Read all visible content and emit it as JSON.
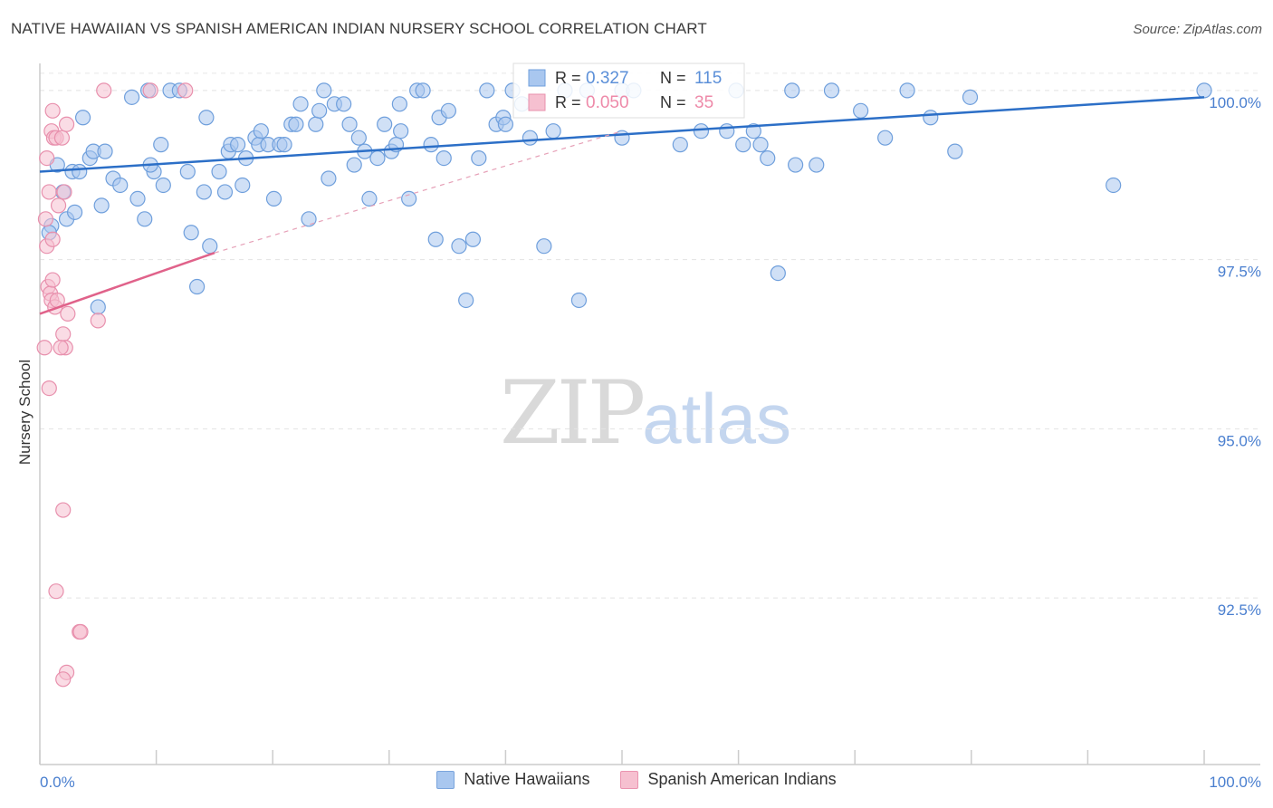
{
  "title": "NATIVE HAWAIIAN VS SPANISH AMERICAN INDIAN NURSERY SCHOOL CORRELATION CHART",
  "source": "Source: ZipAtlas.com",
  "watermark": {
    "zip": "ZIP",
    "atlas": "atlas"
  },
  "legend_box": {
    "rows": [
      {
        "r_label": "R =",
        "r_value": "0.327",
        "n_label": "N =",
        "n_value": "115",
        "color": "#5b8fd8"
      },
      {
        "r_label": "R =",
        "r_value": "0.050",
        "n_label": "N =",
        "n_value": "35",
        "color": "#ee8aa9"
      }
    ]
  },
  "legend": [
    {
      "label": "Native Hawaiians",
      "color": "#a9c7ef"
    },
    {
      "label": "Spanish American Indians",
      "color": "#f6c0d0"
    }
  ],
  "chart_data": {
    "type": "scatter",
    "title": "NATIVE HAWAIIAN VS SPANISH AMERICAN INDIAN NURSERY SCHOOL CORRELATION CHART",
    "xlabel": "",
    "ylabel": "Nursery School",
    "xlim": [
      0,
      100
    ],
    "ylim": [
      90.2,
      100.4
    ],
    "x_tick_labels": [
      "0.0%",
      "100.0%"
    ],
    "y_ticks": [
      92.5,
      95.0,
      97.5,
      100.0
    ],
    "y_tick_labels": [
      "92.5%",
      "95.0%",
      "97.5%",
      "100.0%"
    ],
    "grid": true,
    "series": [
      {
        "name": "Native Hawaiians",
        "color": "#a9c7ef",
        "stroke": "#6f9fdc",
        "trend": {
          "x": [
            0,
            100
          ],
          "y": [
            98.8,
            99.9
          ],
          "color": "#2c6fc7"
        },
        "points": [
          [
            1.5,
            98.9
          ],
          [
            2,
            98.5
          ],
          [
            2.3,
            98.1
          ],
          [
            2.8,
            98.8
          ],
          [
            3.4,
            98.8
          ],
          [
            5.3,
            98.3
          ],
          [
            3.7,
            99.6
          ],
          [
            4.3,
            99.0
          ],
          [
            4.6,
            99.1
          ],
          [
            5.6,
            99.1
          ],
          [
            6.3,
            98.7
          ],
          [
            6.9,
            98.6
          ],
          [
            7.9,
            99.9
          ],
          [
            8.4,
            98.4
          ],
          [
            9.0,
            98.1
          ],
          [
            9.3,
            100.0
          ],
          [
            9.8,
            98.8
          ],
          [
            10.4,
            99.2
          ],
          [
            10.6,
            98.6
          ],
          [
            11.2,
            100.0
          ],
          [
            12.0,
            100.0
          ],
          [
            12.7,
            98.8
          ],
          [
            13.0,
            97.9
          ],
          [
            14.1,
            98.5
          ],
          [
            14.3,
            99.6
          ],
          [
            14.6,
            97.7
          ],
          [
            15.4,
            98.8
          ],
          [
            15.9,
            98.5
          ],
          [
            16.2,
            99.1
          ],
          [
            16.4,
            99.2
          ],
          [
            17.0,
            99.2
          ],
          [
            17.4,
            98.6
          ],
          [
            17.7,
            99.0
          ],
          [
            18.5,
            99.3
          ],
          [
            18.8,
            99.2
          ],
          [
            19.6,
            99.2
          ],
          [
            20.1,
            98.4
          ],
          [
            20.6,
            99.2
          ],
          [
            21.0,
            99.2
          ],
          [
            21.6,
            99.5
          ],
          [
            22.4,
            99.8
          ],
          [
            23.1,
            98.1
          ],
          [
            23.7,
            99.5
          ],
          [
            24.0,
            99.7
          ],
          [
            24.4,
            100.0
          ],
          [
            24.8,
            98.7
          ],
          [
            25.3,
            99.8
          ],
          [
            26.1,
            99.8
          ],
          [
            26.6,
            99.5
          ],
          [
            27.4,
            99.3
          ],
          [
            27.9,
            99.1
          ],
          [
            28.3,
            98.4
          ],
          [
            29.0,
            99.0
          ],
          [
            29.6,
            99.5
          ],
          [
            30.2,
            99.1
          ],
          [
            30.6,
            99.2
          ],
          [
            30.9,
            99.8
          ],
          [
            31.7,
            98.4
          ],
          [
            32.4,
            100.0
          ],
          [
            32.9,
            100.0
          ],
          [
            33.6,
            99.2
          ],
          [
            34.3,
            99.6
          ],
          [
            34.7,
            99.0
          ],
          [
            35.1,
            99.7
          ],
          [
            36.0,
            97.7
          ],
          [
            36.6,
            96.9
          ],
          [
            37.2,
            97.8
          ],
          [
            37.7,
            99.0
          ],
          [
            38.4,
            100.0
          ],
          [
            39.2,
            99.5
          ],
          [
            39.8,
            99.6
          ],
          [
            40.6,
            100.0
          ],
          [
            41.4,
            99.8
          ],
          [
            42.1,
            99.3
          ],
          [
            43.3,
            97.7
          ],
          [
            44.1,
            99.4
          ],
          [
            45.1,
            100.0
          ],
          [
            46.3,
            96.9
          ],
          [
            50.0,
            100.0
          ],
          [
            51.0,
            100.0
          ],
          [
            56.8,
            99.4
          ],
          [
            59.8,
            100.0
          ],
          [
            60.4,
            99.2
          ],
          [
            61.3,
            99.4
          ],
          [
            61.9,
            99.2
          ],
          [
            62.5,
            99.0
          ],
          [
            63.4,
            97.3
          ],
          [
            64.6,
            100.0
          ],
          [
            64.9,
            98.9
          ],
          [
            66.7,
            98.9
          ],
          [
            70.5,
            99.7
          ],
          [
            72.6,
            99.3
          ],
          [
            74.5,
            100.0
          ],
          [
            76.5,
            99.6
          ],
          [
            78.6,
            99.1
          ],
          [
            79.9,
            99.9
          ],
          [
            92.2,
            98.6
          ],
          [
            100.0,
            100.0
          ],
          [
            5.0,
            96.8
          ],
          [
            13.5,
            97.1
          ],
          [
            1.0,
            98.0
          ],
          [
            34.0,
            97.8
          ],
          [
            27.0,
            98.9
          ],
          [
            22.0,
            99.5
          ],
          [
            40.0,
            99.5
          ],
          [
            55.0,
            99.2
          ],
          [
            50.0,
            99.3
          ],
          [
            68.0,
            100.0
          ],
          [
            59.0,
            99.4
          ],
          [
            47.0,
            100.0
          ],
          [
            0.8,
            97.9
          ],
          [
            3.0,
            98.2
          ],
          [
            9.5,
            98.9
          ],
          [
            19.0,
            99.4
          ],
          [
            31.0,
            99.4
          ]
        ]
      },
      {
        "name": "Spanish American Indians",
        "color": "#f6c0d0",
        "stroke": "#e890ad",
        "trend": {
          "x": [
            0,
            15
          ],
          "y": [
            96.7,
            97.6
          ],
          "color": "#e0628a"
        },
        "trend_ext": {
          "x": [
            15,
            50
          ],
          "y": [
            97.6,
            99.4
          ],
          "color": "#e6a0b7"
        },
        "points": [
          [
            0.5,
            98.1
          ],
          [
            0.8,
            98.5
          ],
          [
            1.0,
            99.4
          ],
          [
            1.1,
            99.7
          ],
          [
            1.2,
            99.3
          ],
          [
            1.4,
            99.3
          ],
          [
            1.6,
            98.3
          ],
          [
            1.9,
            99.3
          ],
          [
            2.1,
            98.5
          ],
          [
            2.3,
            99.5
          ],
          [
            0.6,
            97.7
          ],
          [
            0.7,
            97.1
          ],
          [
            0.9,
            97.0
          ],
          [
            1.0,
            96.9
          ],
          [
            1.1,
            97.2
          ],
          [
            1.3,
            96.8
          ],
          [
            1.5,
            96.9
          ],
          [
            2.0,
            96.4
          ],
          [
            2.2,
            96.2
          ],
          [
            2.4,
            96.7
          ],
          [
            0.8,
            95.6
          ],
          [
            1.8,
            96.2
          ],
          [
            0.4,
            96.2
          ],
          [
            2.0,
            93.8
          ],
          [
            1.4,
            92.6
          ],
          [
            3.4,
            92.0
          ],
          [
            3.5,
            92.0
          ],
          [
            2.3,
            91.4
          ],
          [
            2.0,
            91.3
          ],
          [
            5.0,
            96.6
          ],
          [
            5.5,
            100.0
          ],
          [
            12.5,
            100.0
          ],
          [
            9.5,
            100.0
          ],
          [
            1.1,
            97.8
          ],
          [
            0.6,
            99.0
          ]
        ]
      }
    ]
  }
}
